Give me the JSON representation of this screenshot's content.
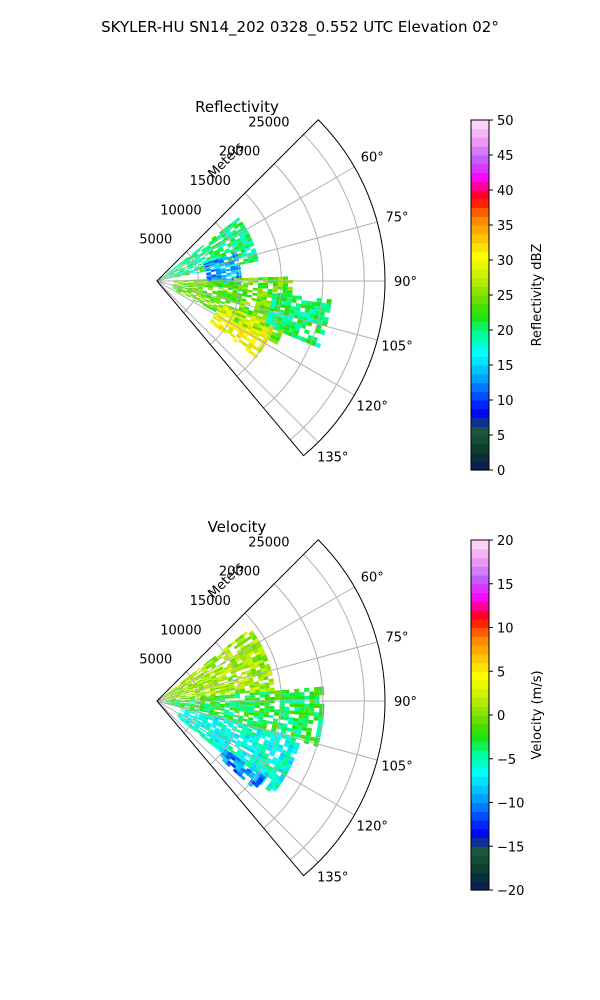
{
  "figure": {
    "suptitle": "SKYLER-HU  SN14_202  0328_0.552 UTC Elevation 02°"
  },
  "chart_data": [
    {
      "type": "heatmap",
      "projection": "polar-sector",
      "title": "Reflectivity",
      "range_label": "Meters",
      "range_ticks": [
        "5000",
        "10000",
        "15000",
        "20000",
        "25000"
      ],
      "range_tick_values": [
        5000,
        10000,
        15000,
        20000,
        25000
      ],
      "rmax": 27500,
      "theta_range_deg": [
        45,
        140
      ],
      "angle_ticks": [
        "60°",
        "75°",
        "90°",
        "105°",
        "120°",
        "135°"
      ],
      "angle_tick_values": [
        60,
        75,
        90,
        105,
        120,
        135
      ],
      "grid": true,
      "colorbar": {
        "label": "Reflectivity dBZ",
        "range": [
          0,
          50
        ],
        "ticks": [
          "0",
          "5",
          "10",
          "15",
          "20",
          "25",
          "30",
          "35",
          "40",
          "45",
          "50"
        ],
        "tick_values": [
          0,
          5,
          10,
          15,
          20,
          25,
          30,
          35,
          40,
          45,
          50
        ]
      },
      "colormap": [
        "#0a1a5a",
        "#0a3b2a",
        "#1a5a3a",
        "#0000ff",
        "#0060ff",
        "#00b8ff",
        "#00ffff",
        "#00ff99",
        "#22e000",
        "#7fe000",
        "#c8f000",
        "#ffff00",
        "#ffc000",
        "#ff8000",
        "#ff0000",
        "#ff00ff",
        "#c060ff",
        "#f0a0f0",
        "#ffe0ff"
      ],
      "field_regions": [
        {
          "theta": [
            52,
            78
          ],
          "range": [
            500,
            12000
          ],
          "value": 20
        },
        {
          "theta": [
            70,
            95
          ],
          "range": [
            6000,
            10000
          ],
          "value": 13
        },
        {
          "theta": [
            88,
            118
          ],
          "range": [
            2000,
            16000
          ],
          "value": 24
        },
        {
          "theta": [
            110,
            128
          ],
          "range": [
            8000,
            15000
          ],
          "value": 30
        },
        {
          "theta": [
            96,
            112
          ],
          "range": [
            14000,
            21000
          ],
          "value": 20
        }
      ]
    },
    {
      "type": "heatmap",
      "projection": "polar-sector",
      "title": "Velocity",
      "range_label": "Meters",
      "range_ticks": [
        "5000",
        "10000",
        "15000",
        "20000",
        "25000"
      ],
      "range_tick_values": [
        5000,
        10000,
        15000,
        20000,
        25000
      ],
      "rmax": 27500,
      "theta_range_deg": [
        45,
        140
      ],
      "angle_ticks": [
        "60°",
        "75°",
        "90°",
        "105°",
        "120°",
        "135°"
      ],
      "angle_tick_values": [
        60,
        75,
        90,
        105,
        120,
        135
      ],
      "grid": true,
      "colorbar": {
        "label": "Velocity (m/s)",
        "range": [
          -20,
          20
        ],
        "ticks": [
          "−20",
          "−15",
          "−10",
          "−5",
          "0",
          "5",
          "10",
          "15",
          "20"
        ],
        "tick_values": [
          -20,
          -15,
          -10,
          -5,
          0,
          5,
          10,
          15,
          20
        ]
      },
      "colormap": [
        "#0a1a5a",
        "#0a3b2a",
        "#1a5a3a",
        "#0000ff",
        "#0060ff",
        "#00b8ff",
        "#00ffff",
        "#00ff99",
        "#22e000",
        "#7fe000",
        "#c8f000",
        "#ffff00",
        "#ffc000",
        "#ff8000",
        "#ff0000",
        "#ff00ff",
        "#c060ff",
        "#f0a0f0",
        "#ffe0ff"
      ],
      "field_regions": [
        {
          "theta": [
            52,
            85
          ],
          "range": [
            500,
            14000
          ],
          "value": 1
        },
        {
          "theta": [
            85,
            105
          ],
          "range": [
            1000,
            20000
          ],
          "value": -3
        },
        {
          "theta": [
            105,
            128
          ],
          "range": [
            3000,
            18000
          ],
          "value": -6
        },
        {
          "theta": [
            125,
            132
          ],
          "range": [
            10000,
            16000
          ],
          "value": -10
        }
      ]
    }
  ]
}
